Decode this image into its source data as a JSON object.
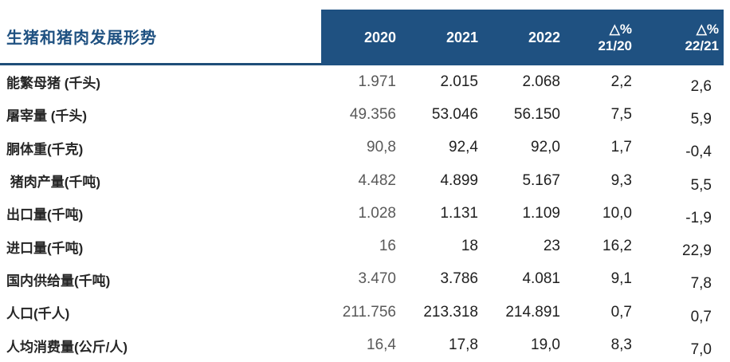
{
  "colors": {
    "accent_blue": "#1F5181",
    "divider_blue": "#1F4E79",
    "header_text": "#FFFFFF",
    "muted_2020_column": "#595959",
    "value_text": "#1F1F1F",
    "label_text": "#262626"
  },
  "chart_data": {
    "type": "table",
    "title": "生猪和猪肉发展形势",
    "columns": [
      {
        "label": "2020"
      },
      {
        "label": "2021"
      },
      {
        "label": "2022"
      },
      {
        "line1": "△%",
        "line2": "21/20"
      },
      {
        "line1": "△%",
        "line2": "22/21"
      }
    ],
    "rows": [
      {
        "label": "能繁母猪 (千头)",
        "values": [
          "1.971",
          "2.015",
          "2.068",
          "2,2",
          "2,6"
        ]
      },
      {
        "label": "屠宰量 (千头)",
        "values": [
          "49.356",
          "53.046",
          "56.150",
          "7,5",
          "5,9"
        ]
      },
      {
        "label": "胴体重(千克)",
        "values": [
          "90,8",
          "92,4",
          "92,0",
          "1,7",
          "-0,4"
        ]
      },
      {
        "label": " 猪肉产量(千吨)",
        "values": [
          "4.482",
          "4.899",
          "5.167",
          "9,3",
          "5,5"
        ]
      },
      {
        "label": "出口量(千吨)",
        "values": [
          "1.028",
          "1.131",
          "1.109",
          "10,0",
          "-1,9"
        ]
      },
      {
        "label": "进口量(千吨)",
        "values": [
          "16",
          "18",
          "23",
          "16,2",
          "22,9"
        ]
      },
      {
        "label": "国内供给量(千吨)",
        "values": [
          "3.470",
          "3.786",
          "4.081",
          "9,1",
          "7,8"
        ]
      },
      {
        "label": "人口(千人)",
        "values": [
          "211.756",
          "213.318",
          "214.891",
          "0,7",
          "0,7"
        ]
      },
      {
        "label": "人均消费量(公斤/人)",
        "values": [
          "16,4",
          "17,8",
          "19,0",
          "8,3",
          "7,0"
        ]
      }
    ]
  }
}
